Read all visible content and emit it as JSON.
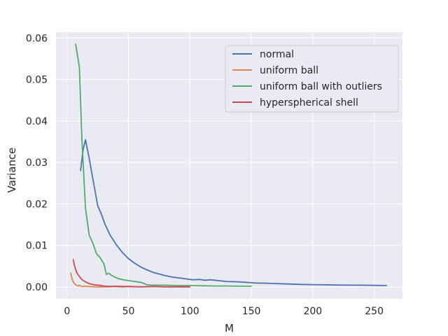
{
  "chart_data": {
    "type": "line",
    "xlabel": "M",
    "ylabel": "Variance",
    "xlim": [
      -9,
      273
    ],
    "ylim": [
      -0.0029,
      0.0614
    ],
    "grid": true,
    "legend_position": "top-right",
    "x_ticks": [
      0,
      50,
      100,
      150,
      200,
      250
    ],
    "x_tick_labels": [
      "0",
      "50",
      "100",
      "150",
      "200",
      "250"
    ],
    "y_ticks": [
      0.0,
      0.01,
      0.02,
      0.03,
      0.04,
      0.05,
      0.06
    ],
    "y_tick_labels": [
      "0.00",
      "0.01",
      "0.02",
      "0.03",
      "0.04",
      "0.05",
      "0.06"
    ],
    "colors": {
      "background": "#eaeaf2",
      "grid": "#ffffff",
      "normal": "#4c72b0",
      "uniform_ball": "#dd8452",
      "uniform_ball_outliers": "#55a868",
      "hyperspherical_shell": "#c44e52"
    },
    "series": [
      {
        "name": "normal",
        "color_key": "normal",
        "x": [
          11,
          13,
          15,
          18,
          21,
          25,
          28,
          31,
          35,
          40,
          45,
          50,
          55,
          60,
          65,
          70,
          75,
          80,
          85,
          90,
          95,
          100,
          103,
          108,
          112,
          117,
          120,
          130,
          140,
          150,
          155,
          160,
          170,
          180,
          190,
          200,
          210,
          220,
          230,
          240,
          250,
          260
        ],
        "y": [
          0.028,
          0.033,
          0.0355,
          0.031,
          0.026,
          0.0195,
          0.0175,
          0.015,
          0.0125,
          0.0102,
          0.0083,
          0.0068,
          0.0057,
          0.0048,
          0.0041,
          0.0035,
          0.0031,
          0.0027,
          0.0024,
          0.0022,
          0.002,
          0.0018,
          0.0017,
          0.0018,
          0.0016,
          0.0017,
          0.0016,
          0.0013,
          0.0012,
          0.001,
          0.0009,
          0.0009,
          0.0008,
          0.0007,
          0.0006,
          0.00055,
          0.0005,
          0.00045,
          0.0004,
          0.0004,
          0.00035,
          0.0003
        ]
      },
      {
        "name": "uniform ball",
        "color_key": "uniform_ball",
        "x": [
          3,
          4,
          5,
          6,
          7,
          8,
          9,
          10,
          11,
          12,
          13,
          14,
          15,
          17,
          20,
          25,
          30,
          35,
          40,
          45,
          50,
          55
        ],
        "y": [
          0.0033,
          0.002,
          0.0012,
          0.0008,
          0.0005,
          0.0003,
          0.0002,
          0.0004,
          0.0002,
          0.0001,
          5e-05,
          0.0002,
          0.0001,
          0.0001,
          5e-05,
          0.0,
          0.0,
          5e-05,
          0.0001,
          0.0,
          0.0001,
          5e-05
        ]
      },
      {
        "name": "uniform ball with outliers",
        "color_key": "uniform_ball_outliers",
        "x": [
          7,
          10,
          12,
          15,
          18,
          21,
          24,
          27,
          30,
          32,
          34,
          36,
          38,
          40,
          43,
          46,
          50,
          55,
          60,
          63,
          65,
          70,
          80,
          90,
          100,
          110,
          120,
          130,
          140,
          150
        ],
        "y": [
          0.0585,
          0.053,
          0.036,
          0.019,
          0.0125,
          0.0105,
          0.008,
          0.007,
          0.0055,
          0.003,
          0.0033,
          0.0028,
          0.0025,
          0.0022,
          0.0019,
          0.0017,
          0.0015,
          0.0013,
          0.0011,
          0.0008,
          0.0005,
          0.0004,
          0.0004,
          0.0003,
          0.0003,
          0.00025,
          0.0002,
          0.0002,
          0.00015,
          0.00015
        ]
      },
      {
        "name": "hyperspherical shell",
        "color_key": "hyperspherical_shell",
        "x": [
          5,
          6,
          7,
          8,
          10,
          12,
          15,
          18,
          22,
          26,
          30,
          35,
          40,
          45,
          50,
          60,
          70,
          80,
          90,
          100
        ],
        "y": [
          0.0066,
          0.0052,
          0.0042,
          0.0034,
          0.0025,
          0.0018,
          0.0012,
          0.0008,
          0.0005,
          0.0004,
          0.0002,
          0.0001,
          0.00015,
          0.0001,
          0.0001,
          0.0,
          0.0001,
          0.0,
          0.0,
          0.0
        ]
      }
    ]
  }
}
